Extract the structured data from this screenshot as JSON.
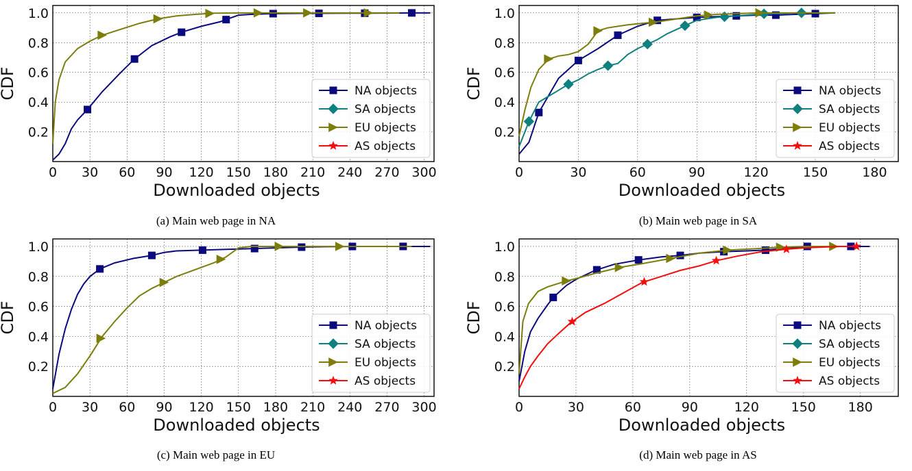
{
  "colors": {
    "NA": "#0a0a7e",
    "SA": "#0f8080",
    "EU": "#7d7d0b",
    "AS": "#f50c0c"
  },
  "panels": [
    {
      "caption": "(a) Main web page in NA"
    },
    {
      "caption": "(b) Main web page in SA"
    },
    {
      "caption": "(c) Main web page in EU"
    },
    {
      "caption": "(d) Main web page in AS"
    }
  ],
  "chart_data": [
    {
      "type": "line",
      "xlabel": "Downloaded objects",
      "ylabel": "CDF",
      "xlim": [
        0,
        308
      ],
      "ylim": [
        0,
        1.05
      ],
      "xticks": [
        "0",
        "30",
        "60",
        "90",
        "120",
        "150",
        "180",
        "210",
        "240",
        "270",
        "300"
      ],
      "yticks": [
        "0.2",
        "0.4",
        "0.6",
        "0.8",
        "1.0"
      ],
      "grid": true,
      "legend_position": "lower-right",
      "legend": [
        "NA objects",
        "SA objects",
        "EU objects",
        "AS objects"
      ],
      "series": [
        {
          "name": "NA objects",
          "key": "NA",
          "marker": "square",
          "x": [
            0,
            5,
            10,
            15,
            20,
            28,
            40,
            55,
            66,
            80,
            95,
            104,
            120,
            135,
            140,
            150,
            160,
            178,
            200,
            215,
            240,
            255,
            270,
            290,
            305
          ],
          "y": [
            0.01,
            0.05,
            0.12,
            0.22,
            0.28,
            0.35,
            0.47,
            0.6,
            0.69,
            0.78,
            0.84,
            0.87,
            0.91,
            0.94,
            0.955,
            0.985,
            0.99,
            0.995,
            0.997,
            0.997,
            0.998,
            0.998,
            0.999,
            1.0,
            1.0
          ],
          "marks_x": [
            28,
            66,
            104,
            140,
            178,
            215,
            252,
            290
          ]
        },
        {
          "name": "EU objects",
          "key": "EU",
          "marker": "triangle",
          "x": [
            0,
            2,
            5,
            10,
            20,
            30,
            40,
            55,
            70,
            85,
            100,
            115,
            130,
            160,
            200,
            250,
            280
          ],
          "y": [
            0.12,
            0.4,
            0.55,
            0.67,
            0.76,
            0.81,
            0.85,
            0.89,
            0.93,
            0.96,
            0.98,
            0.99,
            0.998,
            1.0,
            1.0,
            1.0,
            1.0
          ],
          "marks_x": [
            40,
            85,
            127,
            166,
            206,
            255
          ]
        }
      ]
    },
    {
      "type": "line",
      "xlabel": "Downloaded objects",
      "ylabel": "CDF",
      "xlim": [
        0,
        192
      ],
      "ylim": [
        0,
        1.05
      ],
      "xticks": [
        "0",
        "30",
        "60",
        "90",
        "120",
        "150",
        "180"
      ],
      "yticks": [
        "0.2",
        "0.4",
        "0.6",
        "0.8",
        "1.0"
      ],
      "grid": true,
      "legend_position": "lower-right",
      "legend": [
        "NA objects",
        "SA objects",
        "EU objects",
        "AS objects"
      ],
      "series": [
        {
          "name": "NA objects",
          "key": "NA",
          "marker": "square",
          "x": [
            0,
            5,
            10,
            20,
            30,
            40,
            50,
            60,
            70,
            80,
            90,
            100,
            110,
            120,
            130,
            140,
            150,
            160
          ],
          "y": [
            0.05,
            0.13,
            0.33,
            0.56,
            0.68,
            0.76,
            0.85,
            0.91,
            0.95,
            0.96,
            0.97,
            0.975,
            0.98,
            0.985,
            0.985,
            0.99,
            0.995,
            1.0
          ],
          "marks_x": [
            10,
            30,
            50,
            70,
            90,
            110,
            130,
            150
          ]
        },
        {
          "name": "SA objects",
          "key": "SA",
          "marker": "diamond",
          "x": [
            0,
            5,
            10,
            15,
            20,
            25,
            30,
            35,
            40,
            45,
            50,
            55,
            60,
            65,
            70,
            75,
            80,
            85,
            90,
            95,
            100,
            105,
            110,
            115,
            120,
            125,
            130,
            140,
            150,
            160
          ],
          "y": [
            0.1,
            0.27,
            0.4,
            0.44,
            0.48,
            0.52,
            0.55,
            0.59,
            0.62,
            0.645,
            0.66,
            0.72,
            0.76,
            0.79,
            0.82,
            0.86,
            0.89,
            0.92,
            0.95,
            0.96,
            0.97,
            0.975,
            0.98,
            0.985,
            0.99,
            0.995,
            0.995,
            1.0,
            1.0,
            1.0
          ],
          "marks_x": [
            5,
            25,
            45,
            65,
            84,
            104,
            124,
            143
          ]
        },
        {
          "name": "EU objects",
          "key": "EU",
          "marker": "triangle",
          "x": [
            0,
            3,
            6,
            10,
            15,
            20,
            25,
            30,
            35,
            40,
            45,
            55,
            70,
            90,
            100,
            120,
            140,
            160
          ],
          "y": [
            0.17,
            0.35,
            0.5,
            0.62,
            0.69,
            0.71,
            0.72,
            0.74,
            0.79,
            0.88,
            0.9,
            0.92,
            0.94,
            0.98,
            0.99,
            1.0,
            1.0,
            1.0
          ],
          "marks_x": [
            15,
            40,
            68,
            96,
            122
          ]
        }
      ]
    },
    {
      "type": "line",
      "xlabel": "Downloaded objects",
      "ylabel": "CDF",
      "xlim": [
        0,
        308
      ],
      "ylim": [
        0,
        1.05
      ],
      "xticks": [
        "0",
        "30",
        "60",
        "90",
        "120",
        "150",
        "180",
        "210",
        "240",
        "270",
        "300"
      ],
      "yticks": [
        "0.2",
        "0.4",
        "0.6",
        "0.8",
        "1.0"
      ],
      "grid": true,
      "legend_position": "lower-right",
      "legend": [
        "NA objects",
        "SA objects",
        "EU objects",
        "AS objects"
      ],
      "series": [
        {
          "name": "NA objects",
          "key": "NA",
          "marker": "square",
          "x": [
            0,
            5,
            10,
            15,
            20,
            25,
            30,
            38,
            50,
            65,
            80,
            90,
            100,
            120,
            140,
            160,
            180,
            200,
            220,
            245,
            260,
            285,
            305
          ],
          "y": [
            0.05,
            0.28,
            0.45,
            0.58,
            0.68,
            0.75,
            0.8,
            0.85,
            0.89,
            0.92,
            0.94,
            0.96,
            0.97,
            0.975,
            0.98,
            0.985,
            0.99,
            0.995,
            0.998,
            1.0,
            1.0,
            1.0,
            1.0
          ],
          "marks_x": [
            38,
            80,
            121,
            163,
            201,
            242,
            283
          ]
        },
        {
          "name": "EU objects",
          "key": "EU",
          "marker": "triangle",
          "x": [
            0,
            10,
            20,
            30,
            40,
            50,
            60,
            70,
            80,
            90,
            100,
            110,
            120,
            130,
            140,
            150,
            160,
            190,
            230,
            290
          ],
          "y": [
            0.02,
            0.06,
            0.15,
            0.27,
            0.4,
            0.5,
            0.59,
            0.67,
            0.72,
            0.76,
            0.8,
            0.83,
            0.86,
            0.89,
            0.93,
            0.99,
            1.0,
            1.0,
            1.0,
            1.0
          ],
          "marks_x": [
            39,
            90,
            136,
            183,
            232
          ]
        }
      ]
    },
    {
      "type": "line",
      "xlabel": "Downloaded objects",
      "ylabel": "CDF",
      "xlim": [
        0,
        200
      ],
      "ylim": [
        0,
        1.05
      ],
      "xticks": [
        "0",
        "30",
        "60",
        "90",
        "120",
        "150",
        "180"
      ],
      "yticks": [
        "0.2",
        "0.4",
        "0.6",
        "0.8",
        "1.0"
      ],
      "grid": true,
      "legend_position": "lower-right",
      "legend": [
        "NA objects",
        "SA objects",
        "EU objects",
        "AS objects"
      ],
      "series": [
        {
          "name": "NA objects",
          "key": "NA",
          "marker": "square",
          "x": [
            0,
            3,
            6,
            10,
            15,
            18,
            25,
            30,
            40,
            50,
            63,
            75,
            85,
            95,
            108,
            120,
            130,
            142,
            152,
            165,
            175,
            185
          ],
          "y": [
            0.1,
            0.3,
            0.43,
            0.52,
            0.61,
            0.66,
            0.74,
            0.78,
            0.84,
            0.88,
            0.91,
            0.93,
            0.94,
            0.955,
            0.965,
            0.97,
            0.975,
            0.99,
            1.0,
            1.0,
            1.0,
            1.0
          ],
          "marks_x": [
            18,
            41,
            63,
            85,
            108,
            130,
            152,
            175
          ]
        },
        {
          "name": "EU objects",
          "key": "EU",
          "marker": "triangle",
          "x": [
            0,
            2,
            5,
            10,
            15,
            20,
            25,
            30,
            40,
            53,
            65,
            80,
            95,
            110,
            125,
            138,
            150,
            165,
            178
          ],
          "y": [
            0.15,
            0.5,
            0.62,
            0.7,
            0.73,
            0.75,
            0.77,
            0.785,
            0.82,
            0.86,
            0.885,
            0.92,
            0.955,
            0.975,
            0.985,
            0.995,
            1.0,
            1.0,
            1.0
          ],
          "marks_x": [
            25,
            53,
            80,
            110,
            138,
            166
          ]
        },
        {
          "name": "AS objects",
          "key": "AS",
          "marker": "star",
          "x": [
            0,
            3,
            6,
            10,
            15,
            20,
            27,
            35,
            45,
            55,
            65,
            75,
            85,
            95,
            104,
            115,
            128,
            140,
            150,
            160,
            170,
            178
          ],
          "y": [
            0.05,
            0.13,
            0.2,
            0.27,
            0.35,
            0.41,
            0.49,
            0.56,
            0.62,
            0.69,
            0.76,
            0.8,
            0.84,
            0.87,
            0.905,
            0.935,
            0.965,
            0.98,
            0.99,
            0.995,
            1.0,
            1.0
          ],
          "marks_x": [
            28,
            66,
            104,
            141,
            178
          ]
        }
      ]
    }
  ]
}
